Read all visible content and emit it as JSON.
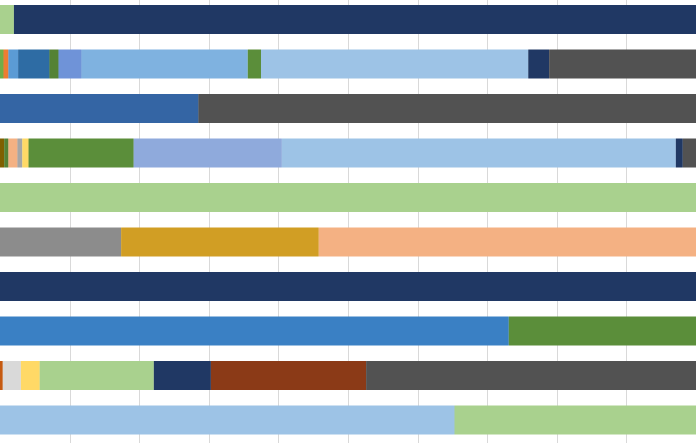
{
  "chart_data": {
    "type": "bar",
    "orientation": "horizontal",
    "stacked": "percent",
    "xlim": [
      0,
      100
    ],
    "grid": "vertical",
    "legend": "none",
    "colors": {
      "background": "#ffffff",
      "gridline": "#d9d9d9"
    },
    "rows": [
      {
        "segments": [
          {
            "value": 2.0,
            "color": "#a9d18e"
          },
          {
            "value": 98.0,
            "color": "#203864"
          }
        ]
      },
      {
        "segments": [
          {
            "value": 0.5,
            "color": "#70ad47"
          },
          {
            "value": 0.7,
            "color": "#ed7d31"
          },
          {
            "value": 1.4,
            "color": "#5b9bd5"
          },
          {
            "value": 4.5,
            "color": "#2e6ca4"
          },
          {
            "value": 1.3,
            "color": "#548235"
          },
          {
            "value": 3.3,
            "color": "#6f93d8"
          },
          {
            "value": 23.9,
            "color": "#7fb2e0"
          },
          {
            "value": 1.9,
            "color": "#5b8e3a"
          },
          {
            "value": 38.4,
            "color": "#9dc3e6"
          },
          {
            "value": 3.0,
            "color": "#203864"
          },
          {
            "value": 21.1,
            "color": "#525252"
          }
        ]
      },
      {
        "segments": [
          {
            "value": 28.5,
            "color": "#3465a4"
          },
          {
            "value": 71.5,
            "color": "#525252"
          }
        ]
      },
      {
        "segments": [
          {
            "value": 0.6,
            "color": "#7f6000"
          },
          {
            "value": 0.6,
            "color": "#548235"
          },
          {
            "value": 1.3,
            "color": "#f4b183"
          },
          {
            "value": 0.7,
            "color": "#a6a6a6"
          },
          {
            "value": 0.9,
            "color": "#ffd966"
          },
          {
            "value": 15.1,
            "color": "#5b8e3a"
          },
          {
            "value": 21.3,
            "color": "#8faadc"
          },
          {
            "value": 56.6,
            "color": "#9dc3e6"
          },
          {
            "value": 1.0,
            "color": "#203864"
          },
          {
            "value": 1.9,
            "color": "#525252"
          }
        ]
      },
      {
        "segments": [
          {
            "value": 100.0,
            "color": "#a9d18e"
          }
        ]
      },
      {
        "segments": [
          {
            "value": 17.4,
            "color": "#8c8c8c"
          },
          {
            "value": 28.4,
            "color": "#d19e24"
          },
          {
            "value": 54.2,
            "color": "#f4b183"
          }
        ]
      },
      {
        "segments": [
          {
            "value": 100.0,
            "color": "#203864"
          }
        ]
      },
      {
        "segments": [
          {
            "value": 73.1,
            "color": "#3a80c4"
          },
          {
            "value": 26.9,
            "color": "#5b8e3a"
          }
        ]
      },
      {
        "segments": [
          {
            "value": 0.4,
            "color": "#c55a11"
          },
          {
            "value": 2.6,
            "color": "#d9d9d9"
          },
          {
            "value": 2.7,
            "color": "#ffd966"
          },
          {
            "value": 16.4,
            "color": "#a9d18e"
          },
          {
            "value": 8.2,
            "color": "#203864"
          },
          {
            "value": 22.3,
            "color": "#8b3a17"
          },
          {
            "value": 47.4,
            "color": "#525252"
          }
        ]
      },
      {
        "segments": [
          {
            "value": 65.3,
            "color": "#9dc3e6"
          },
          {
            "value": 34.7,
            "color": "#a9d18e"
          }
        ]
      }
    ]
  }
}
